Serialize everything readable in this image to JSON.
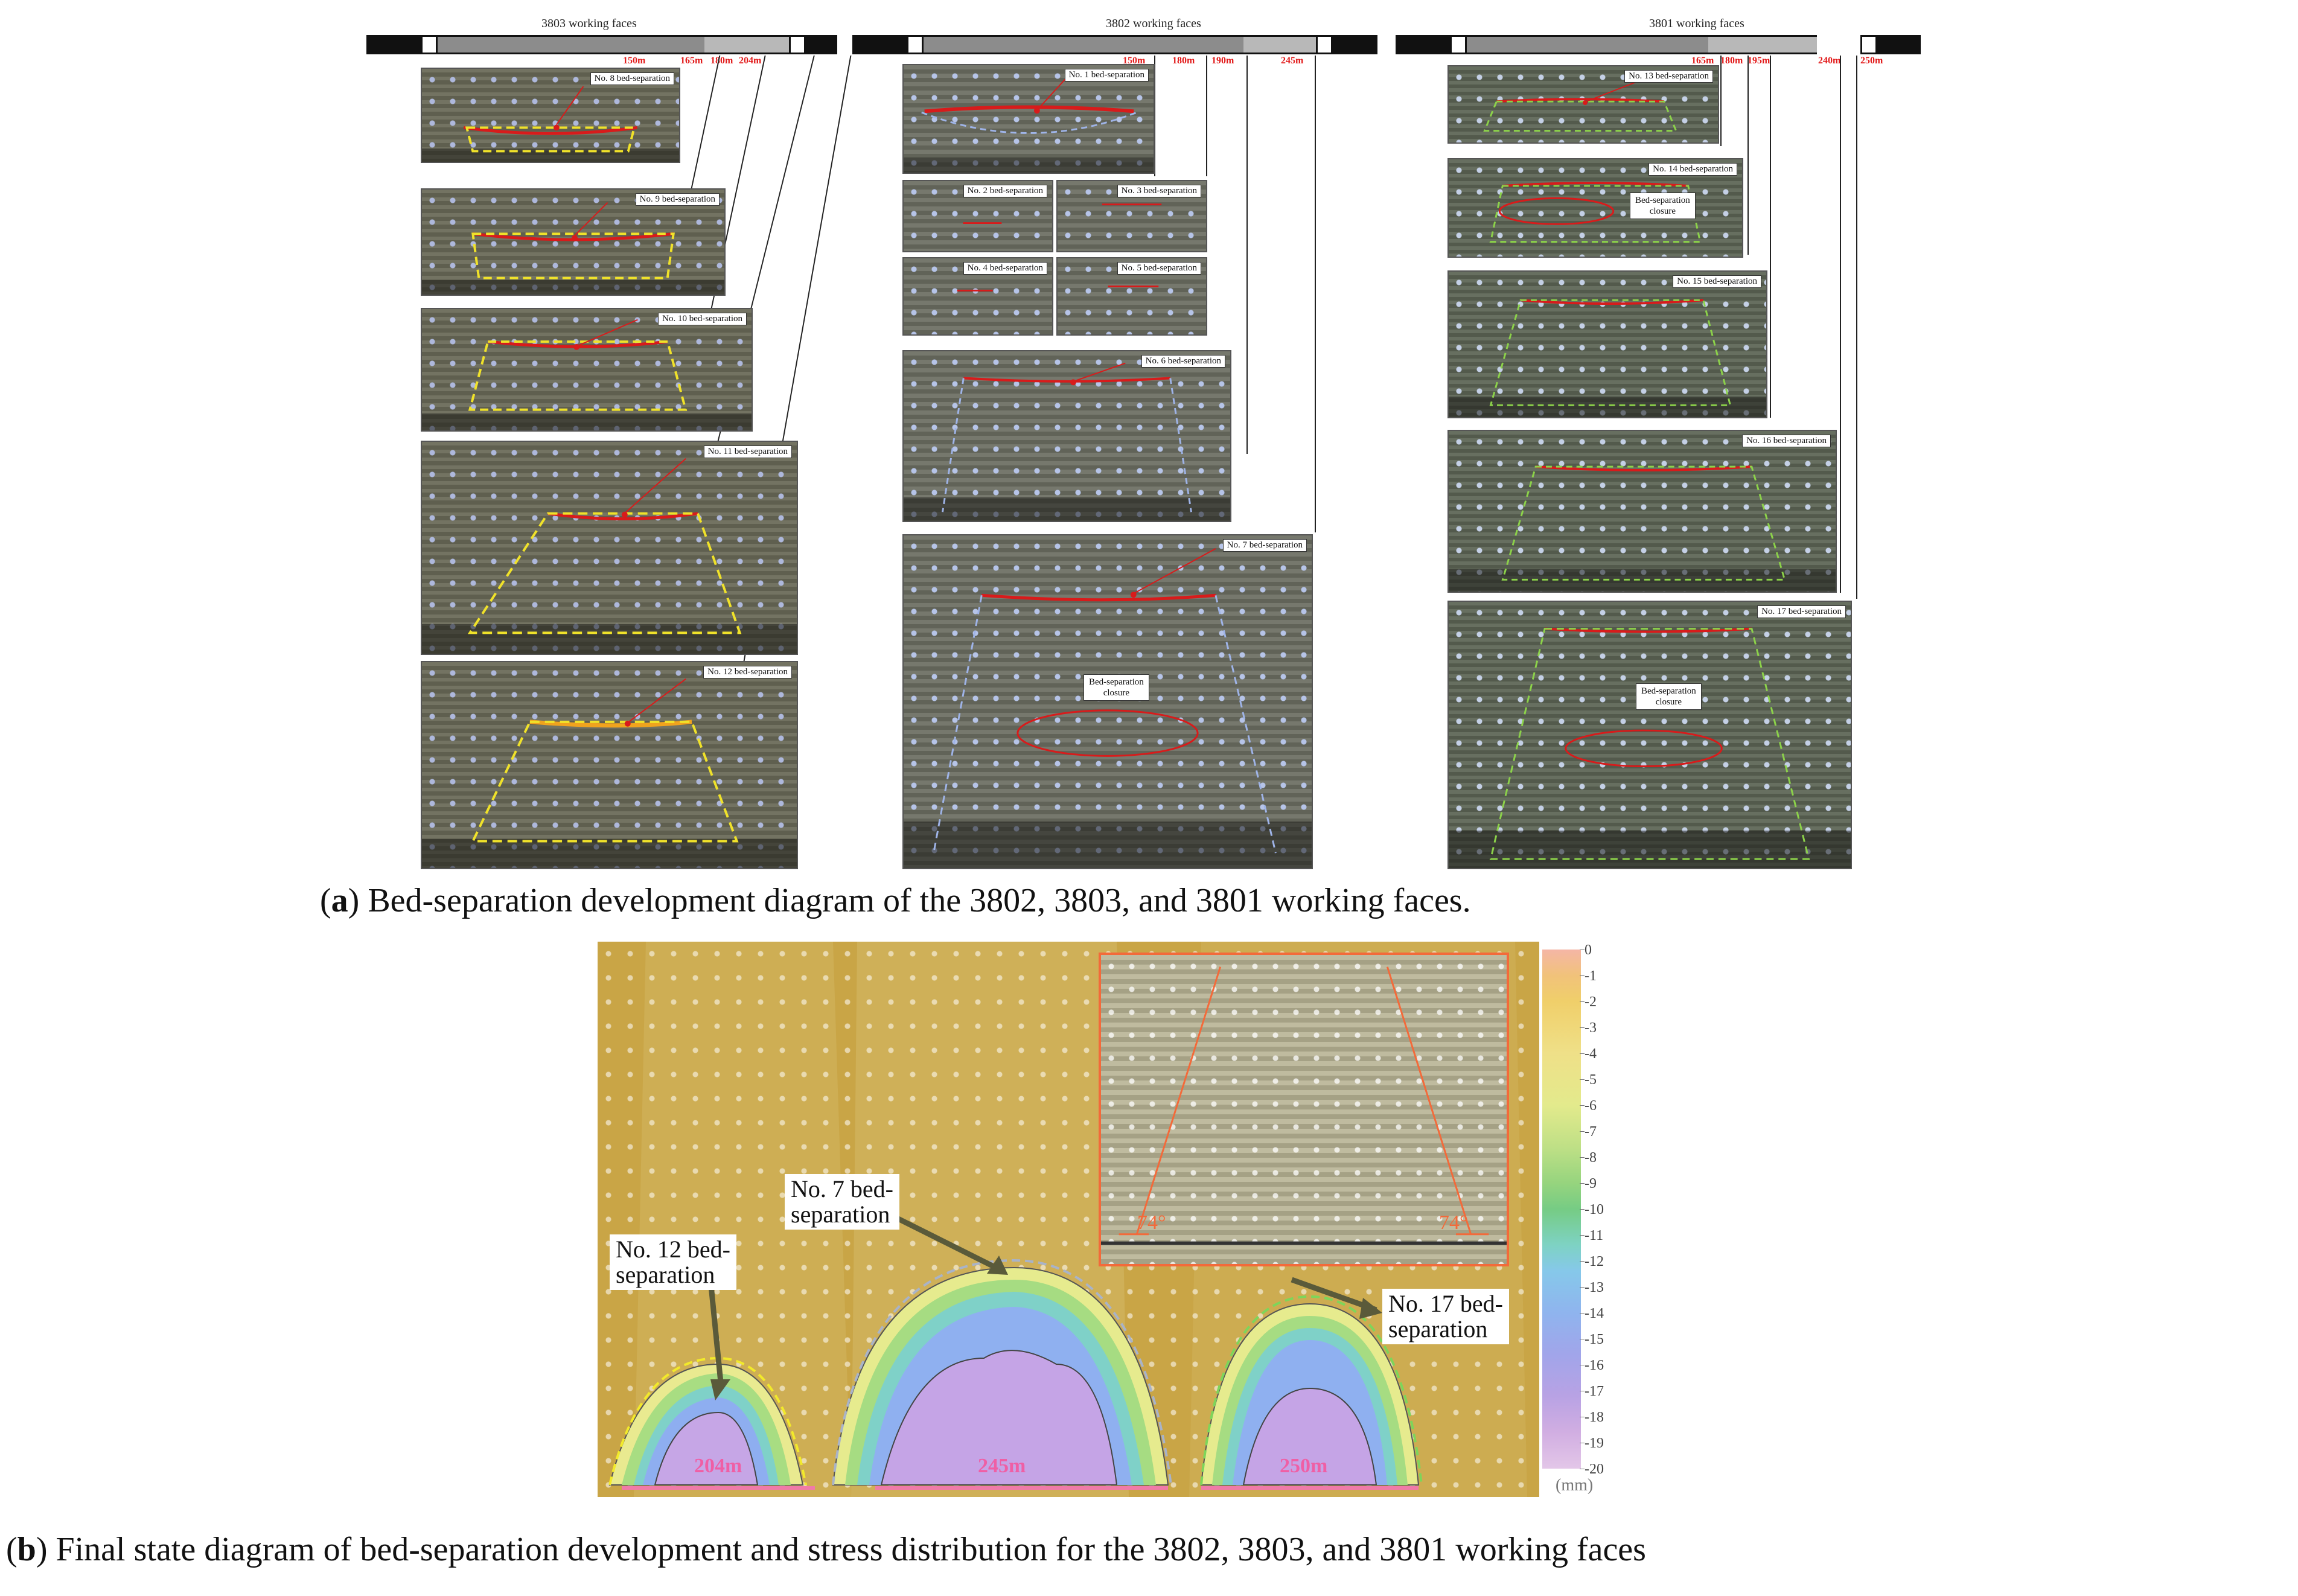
{
  "figure_a": {
    "caption_letter": "a",
    "caption_text": "Bed-separation development diagram of the 3802, 3803, and 3801 working faces.",
    "groups": [
      {
        "title": "3803 working faces",
        "distances": [
          "150m",
          "165m",
          "180m",
          "204m"
        ],
        "photos": [
          {
            "label": "No. 8 bed-separation"
          },
          {
            "label": "No. 9 bed-separation"
          },
          {
            "label": "No. 10 bed-separation"
          },
          {
            "label": "No. 11 bed-separation"
          },
          {
            "label": "No. 12 bed-separation"
          }
        ]
      },
      {
        "title": "3802 working faces",
        "distances": [
          "150m",
          "180m",
          "190m",
          "245m"
        ],
        "photos": [
          {
            "label": "No. 1 bed-separation"
          },
          {
            "label": "No. 2 bed-separation"
          },
          {
            "label": "No. 3 bed-separation"
          },
          {
            "label": "No. 4 bed-separation"
          },
          {
            "label": "No. 5 bed-separation"
          },
          {
            "label": "No. 6 bed-separation"
          },
          {
            "label": "No. 7 bed-separation",
            "closure_line1": "Bed-separation",
            "closure_line2": "closure"
          }
        ]
      },
      {
        "title": "3801 working faces",
        "distances": [
          "165m",
          "180m",
          "195m",
          "240m",
          "250m"
        ],
        "photos": [
          {
            "label": "No. 13 bed-separation"
          },
          {
            "label": "No. 14 bed-separation",
            "closure_line1": "Bed-separation",
            "closure_line2": "closure"
          },
          {
            "label": "No. 15 bed-separation"
          },
          {
            "label": "No. 16 bed-separation"
          },
          {
            "label": "No. 17 bed-separation",
            "closure_line1": "Bed-separation",
            "closure_line2": "closure"
          }
        ]
      }
    ]
  },
  "figure_b": {
    "caption_letter": "b",
    "caption_text": "Final state diagram of bed-separation development and stress distribution for the 3802, 3803, and 3801 working faces",
    "callouts": [
      {
        "line1": "No. 12 bed-",
        "line2": "separation"
      },
      {
        "line1": "No. 7 bed-",
        "line2": "separation"
      },
      {
        "line1": "No. 17 bed-",
        "line2": "separation"
      }
    ],
    "spans": [
      "204m",
      "245m",
      "250m"
    ],
    "inset_angles": [
      "74°",
      "74°"
    ],
    "legend": {
      "ticks": [
        "0",
        "-1",
        "-2",
        "-3",
        "-4",
        "-5",
        "-6",
        "-7",
        "-8",
        "-9",
        "-10",
        "-11",
        "-12",
        "-13",
        "-14",
        "-15",
        "-16",
        "-17",
        "-18",
        "-19",
        "-20"
      ],
      "unit": "(mm)",
      "range": [
        0,
        -20
      ]
    },
    "colors": {
      "background": "#c9a546",
      "inset_border": "#f36a3a",
      "span_text": "#ef5fa5"
    }
  }
}
